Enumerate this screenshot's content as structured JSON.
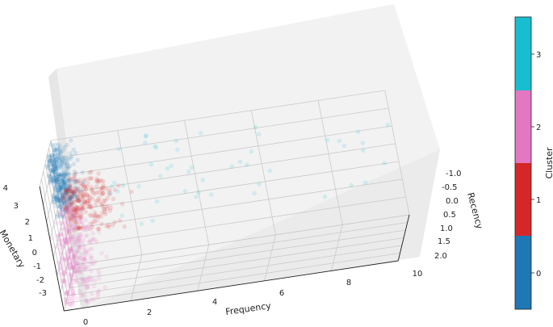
{
  "chart_data": {
    "type": "scatter",
    "projection": "3d",
    "title": "",
    "xlabel": "Frequency",
    "ylabel": "Recency",
    "zlabel": "Monetary",
    "xlim": [
      0,
      10
    ],
    "ylim": [
      2.0,
      -1.0
    ],
    "zlim": [
      -3,
      4
    ],
    "x_ticks": [
      "0",
      "2",
      "4",
      "6",
      "8",
      "10"
    ],
    "y_ticks": [
      "-1.0",
      "-0.5",
      "0.0",
      "0.5",
      "1.0",
      "1.5",
      "2.0"
    ],
    "z_ticks": [
      "-3",
      "-2",
      "-1",
      "0",
      "1",
      "2",
      "3",
      "4"
    ],
    "grid": true,
    "point_alpha": 0.15,
    "clusters": [
      {
        "id": 0,
        "color": "#1f77b4",
        "x_range": [
          0.0,
          0.9
        ],
        "recency_range": [
          -1.0,
          0.6
        ],
        "monetary_range": [
          0.8,
          4.0
        ],
        "approx_points": 1100
      },
      {
        "id": 1,
        "color": "#d62728",
        "x_range": [
          0.3,
          2.4
        ],
        "recency_range": [
          -1.0,
          1.0
        ],
        "monetary_range": [
          0.0,
          2.3
        ],
        "approx_points": 700
      },
      {
        "id": 2,
        "color": "#e377c2",
        "x_range": [
          0.0,
          1.4
        ],
        "recency_range": [
          -0.5,
          2.0
        ],
        "monetary_range": [
          -3.0,
          1.0
        ],
        "approx_points": 1100
      },
      {
        "id": 3,
        "color": "#17becf",
        "x_range": [
          1.8,
          10.0
        ],
        "recency_range": [
          -1.0,
          1.0
        ],
        "monetary_range": [
          0.0,
          4.0
        ],
        "approx_points": 150
      }
    ]
  },
  "colorbar": {
    "label": "Cluster",
    "ticks": [
      "0",
      "1",
      "2",
      "3"
    ],
    "colors": [
      "#1f77b4",
      "#d62728",
      "#e377c2",
      "#17becf"
    ]
  }
}
